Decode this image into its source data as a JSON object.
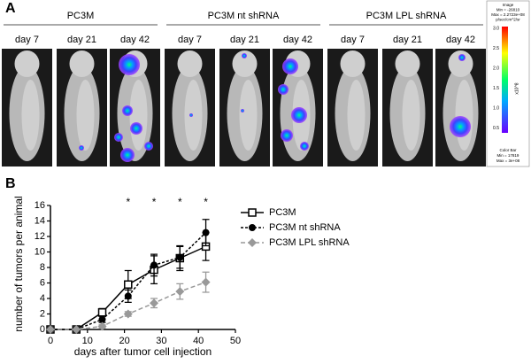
{
  "panel_labels": [
    "A",
    "B"
  ],
  "panel_a": {
    "groups": [
      "PC3M",
      "PC3M nt shRNA",
      "PC3M LPL shRNA"
    ],
    "days": [
      "day 7",
      "day 21",
      "day 42"
    ],
    "colorbar": {
      "header": [
        "Image",
        "Min = -26810",
        "Max = 2.2723e+08",
        "p/sec/cm^2/sr"
      ],
      "ticks": [
        "3.0",
        "2.5",
        "2.0",
        "1.5",
        "1.0",
        "0.5"
      ],
      "unit": "x10^8",
      "footer": [
        "Color Bar",
        "Min = 17819",
        "Max = 3e+08"
      ]
    }
  },
  "chart_data": {
    "type": "line",
    "x": [
      0,
      7,
      14,
      21,
      28,
      35,
      42
    ],
    "series": [
      {
        "name": "PC3M",
        "color": "#000000",
        "marker": "square",
        "dash": false,
        "values": [
          0,
          0,
          2.2,
          5.8,
          7.7,
          9.2,
          10.7
        ],
        "errors": [
          0,
          0,
          0.5,
          1.8,
          1.8,
          1.6,
          1.8
        ]
      },
      {
        "name": "PC3M nt shRNA",
        "color": "#000000",
        "marker": "circle",
        "dash": true,
        "values": [
          0,
          0,
          1.3,
          4.3,
          8.3,
          9.3,
          12.5
        ],
        "errors": [
          0,
          0,
          0.4,
          0.8,
          1.4,
          1.4,
          1.7
        ]
      },
      {
        "name": "PC3M LPL shRNA",
        "color": "#999999",
        "marker": "diamond",
        "dash": true,
        "values": [
          0,
          0,
          0.4,
          2.0,
          3.4,
          4.9,
          6.1
        ],
        "errors": [
          0,
          0,
          0.2,
          0.3,
          0.6,
          1.0,
          1.3
        ]
      }
    ],
    "xlabel": "days after tumor cell injection",
    "ylabel": "number of tumors per animal",
    "xlim": [
      0,
      50
    ],
    "xticks": [
      0,
      10,
      20,
      30,
      40,
      50
    ],
    "ylim": [
      0,
      16
    ],
    "yticks": [
      0,
      2,
      4,
      6,
      8,
      10,
      12,
      14,
      16
    ],
    "annotations": [
      {
        "x": 21,
        "text": "*"
      },
      {
        "x": 28,
        "text": "*"
      },
      {
        "x": 35,
        "text": "*"
      },
      {
        "x": 42,
        "text": "*"
      }
    ],
    "legend": "upper right"
  }
}
